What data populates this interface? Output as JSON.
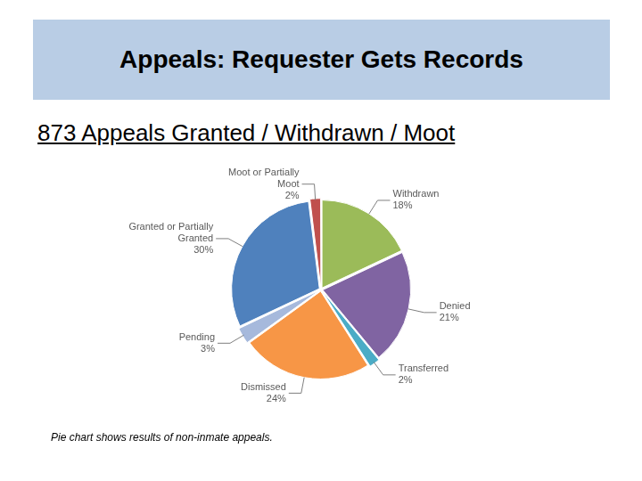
{
  "chart_data": {
    "type": "pie",
    "title": "Appeals: Requester Gets Records",
    "subtitle": "873 Appeals Granted / Withdrawn / Moot",
    "categories": [
      "Withdrawn",
      "Denied",
      "Transferred",
      "Dismissed",
      "Pending",
      "Granted or Partially Granted",
      "Moot or Partially Moot"
    ],
    "values": [
      18,
      21,
      2,
      24,
      3,
      30,
      2
    ],
    "value_labels": [
      "18%",
      "21%",
      "2%",
      "24%",
      "3%",
      "30%",
      "2%"
    ],
    "colors": [
      "#9bbb59",
      "#8064a2",
      "#4bacc6",
      "#f79646",
      "#a6b9dc",
      "#4f81bd",
      "#c0504d"
    ],
    "data_labels": true,
    "annotations": [
      "Pie chart shows results of non-inmate appeals."
    ]
  }
}
